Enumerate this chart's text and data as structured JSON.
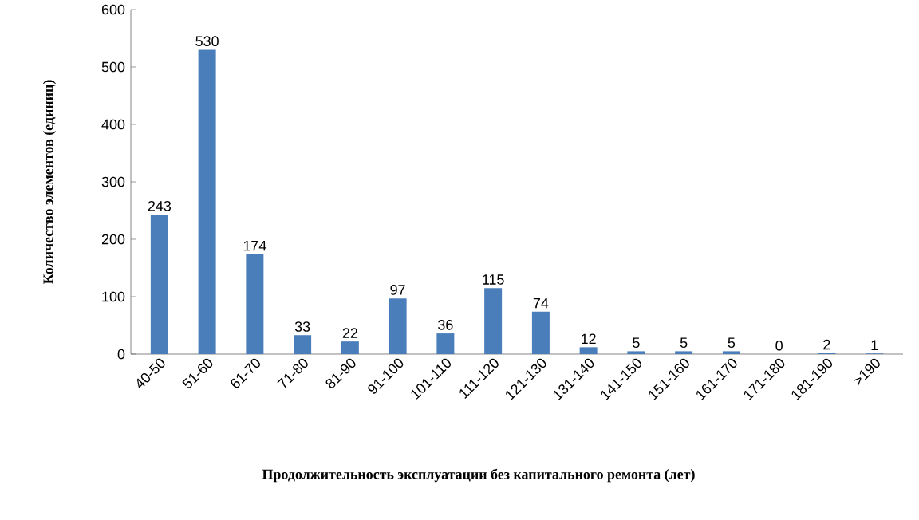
{
  "chart_data": {
    "type": "bar",
    "xlabel": "Продолжительность эксплуатации без капитального ремонта (лет)",
    "ylabel": "Количество элементов (единиц)",
    "categories": [
      "40-50",
      "51-60",
      "61-70",
      "71-80",
      "81-90",
      "91-100",
      "101-110",
      "111-120",
      "121-130",
      "131-140",
      "141-150",
      "151-160",
      "161-170",
      "171-180",
      "181-190",
      ">190"
    ],
    "values": [
      243,
      530,
      174,
      33,
      22,
      97,
      36,
      115,
      74,
      12,
      5,
      5,
      5,
      0,
      2,
      1
    ],
    "color": "#4a7ebb",
    "ylim": [
      0,
      600
    ],
    "yticks": [
      0,
      100,
      200,
      300,
      400,
      500,
      600
    ],
    "data_labels": true
  }
}
